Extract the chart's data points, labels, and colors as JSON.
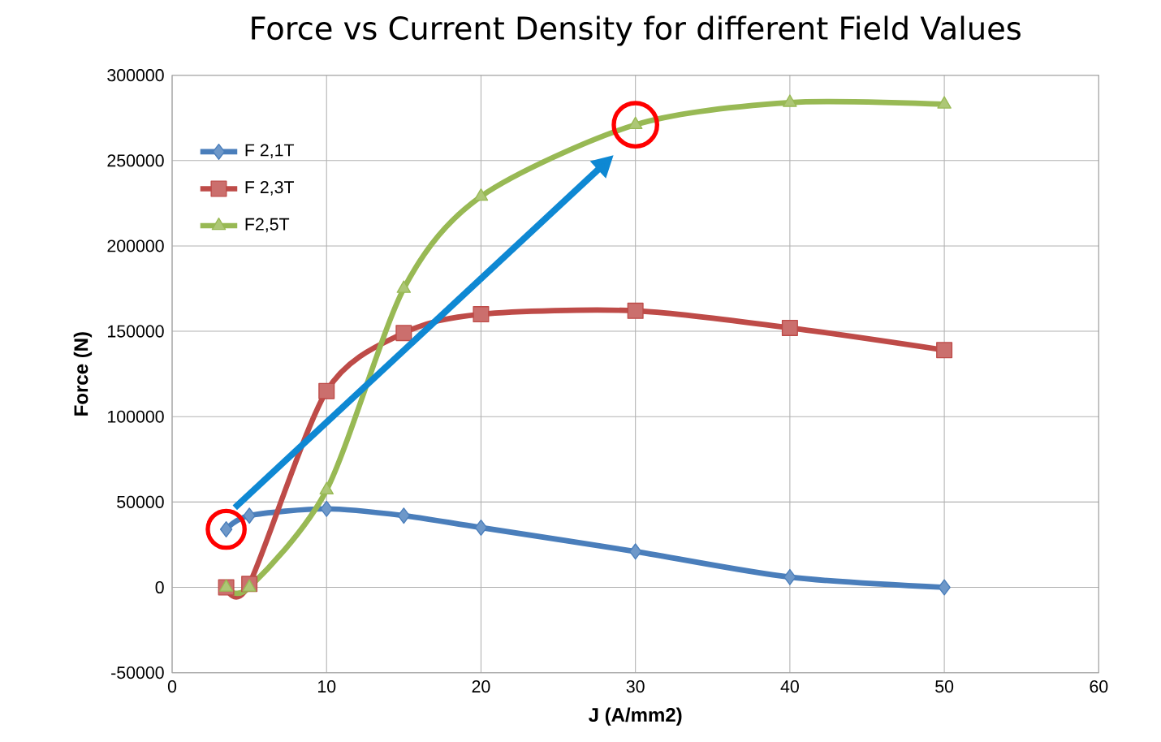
{
  "chart_data": {
    "type": "line",
    "title": "Force vs Current Density for different Field Values",
    "xlabel": "J (A/mm2)",
    "ylabel": "Force (N)",
    "x": [
      3.5,
      5,
      10,
      15,
      20,
      30,
      40,
      50
    ],
    "series": [
      {
        "name": "F 2,1T",
        "color": "#4a7ebb",
        "marker": "diamond",
        "values": [
          34000,
          42000,
          46000,
          42000,
          35000,
          21000,
          6000,
          0
        ]
      },
      {
        "name": "F 2,3T",
        "color": "#be4b48",
        "marker": "square",
        "values": [
          0,
          2000,
          115000,
          149000,
          160000,
          162000,
          152000,
          139000
        ]
      },
      {
        "name": "F2,5T",
        "color": "#98b954",
        "marker": "triangle",
        "values": [
          0,
          0,
          57000,
          175000,
          229000,
          271000,
          284000,
          283000
        ]
      }
    ],
    "xlim": [
      0,
      60
    ],
    "xticks": [
      0,
      10,
      20,
      30,
      40,
      50,
      60
    ],
    "ylim": [
      -50000,
      300000
    ],
    "yticks": [
      -50000,
      0,
      50000,
      100000,
      150000,
      200000,
      250000,
      300000
    ],
    "grid": true,
    "legend": "top left",
    "line_style": "solid"
  }
}
